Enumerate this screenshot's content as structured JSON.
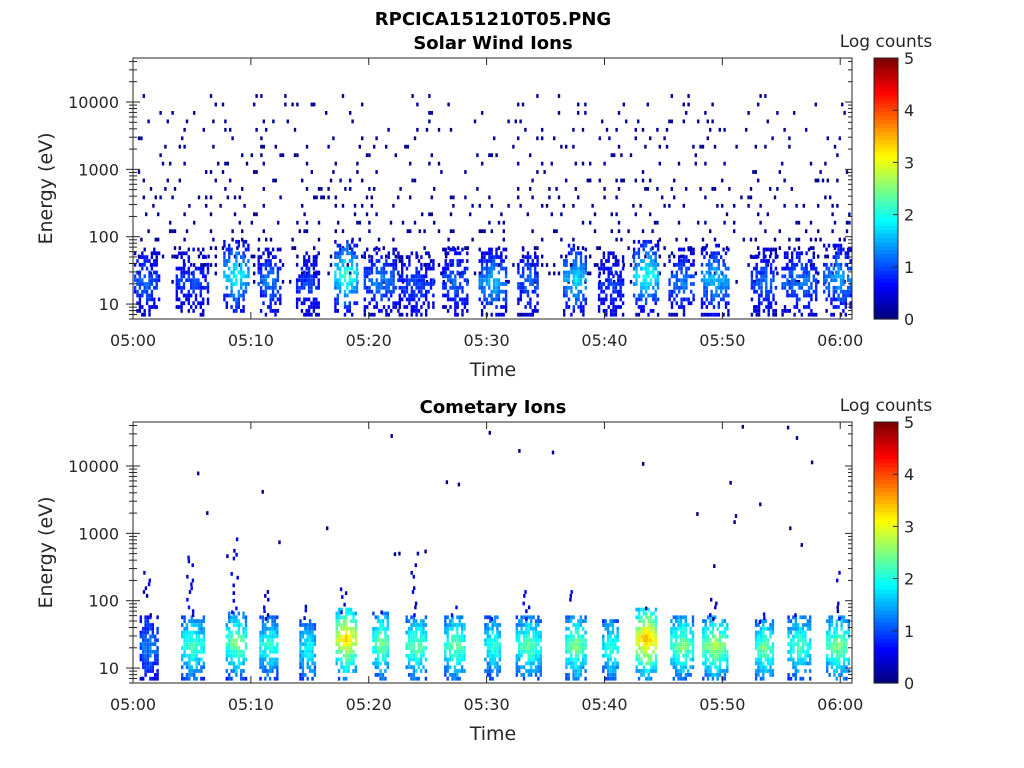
{
  "figure": {
    "file_title": "RPCICA151210T05.PNG"
  },
  "chart_data": [
    {
      "type": "heatmap",
      "title": "Solar Wind Ions",
      "xlabel": "Time",
      "ylabel": "Energy (eV)",
      "x_range_minutes": [
        0,
        61
      ],
      "x_ticks": [
        "05:00",
        "05:10",
        "05:20",
        "05:30",
        "05:40",
        "05:50",
        "06:00"
      ],
      "y_scale": "log",
      "y_range": [
        6,
        45000
      ],
      "y_ticks": [
        "10",
        "100",
        "1000",
        "10000"
      ],
      "colorbar": {
        "label": "Log counts",
        "min": 0,
        "max": 5,
        "ticks": [
          "0",
          "1",
          "2",
          "3",
          "4",
          "5"
        ],
        "colormap": "jet"
      },
      "bright_bursts": [
        {
          "t": 1,
          "peak_energy": 20,
          "level": 1.2
        },
        {
          "t": 5,
          "peak_energy": 20,
          "level": 1.0
        },
        {
          "t": 8.7,
          "peak_energy": 25,
          "level": 2.0
        },
        {
          "t": 11.5,
          "peak_energy": 20,
          "level": 1.3
        },
        {
          "t": 14.8,
          "peak_energy": 18,
          "level": 1.0
        },
        {
          "t": 18,
          "peak_energy": 25,
          "level": 2.3
        },
        {
          "t": 21,
          "peak_energy": 20,
          "level": 1.3
        },
        {
          "t": 24,
          "peak_energy": 18,
          "level": 1.0
        },
        {
          "t": 27.3,
          "peak_energy": 20,
          "level": 1.2
        },
        {
          "t": 30.5,
          "peak_energy": 20,
          "level": 1.6
        },
        {
          "t": 33.5,
          "peak_energy": 20,
          "level": 1.2
        },
        {
          "t": 37.5,
          "peak_energy": 22,
          "level": 1.8
        },
        {
          "t": 40.5,
          "peak_energy": 18,
          "level": 1.0
        },
        {
          "t": 43.5,
          "peak_energy": 25,
          "level": 2.1
        },
        {
          "t": 46.5,
          "peak_energy": 20,
          "level": 1.3
        },
        {
          "t": 49.3,
          "peak_energy": 22,
          "level": 1.7
        },
        {
          "t": 53.5,
          "peak_energy": 20,
          "level": 1.2
        },
        {
          "t": 56.5,
          "peak_energy": 20,
          "level": 1.3
        },
        {
          "t": 59.8,
          "peak_energy": 22,
          "level": 1.5
        }
      ],
      "background": {
        "min_energy": 20,
        "max_energy": 15000,
        "level": 0.1
      }
    },
    {
      "type": "heatmap",
      "title": "Cometary Ions",
      "xlabel": "Time",
      "ylabel": "Energy (eV)",
      "x_range_minutes": [
        0,
        61
      ],
      "x_ticks": [
        "05:00",
        "05:10",
        "05:20",
        "05:30",
        "05:40",
        "05:50",
        "06:00"
      ],
      "y_scale": "log",
      "y_range": [
        6,
        45000
      ],
      "y_ticks": [
        "10",
        "100",
        "1000",
        "10000"
      ],
      "colorbar": {
        "label": "Log counts",
        "min": 0,
        "max": 5,
        "ticks": [
          "0",
          "1",
          "2",
          "3",
          "4",
          "5"
        ],
        "colormap": "jet"
      },
      "bursts": [
        {
          "t": 1.3,
          "peak_energy": 20,
          "level": 1.3,
          "tail_top": 300
        },
        {
          "t": 5,
          "peak_energy": 20,
          "level": 2.3,
          "tail_top": 500
        },
        {
          "t": 8.7,
          "peak_energy": 22,
          "level": 2.6,
          "tail_top": 900
        },
        {
          "t": 11.5,
          "peak_energy": 20,
          "level": 2.2,
          "tail_top": 150
        },
        {
          "t": 14.8,
          "peak_energy": 18,
          "level": 2.0,
          "tail_top": 80
        },
        {
          "t": 18,
          "peak_energy": 25,
          "level": 3.4,
          "tail_top": 150
        },
        {
          "t": 21,
          "peak_energy": 22,
          "level": 2.6,
          "tail_top": 100
        },
        {
          "t": 24,
          "peak_energy": 20,
          "level": 2.5,
          "tail_top": 500
        },
        {
          "t": 27.3,
          "peak_energy": 20,
          "level": 2.5,
          "tail_top": 80
        },
        {
          "t": 30.5,
          "peak_energy": 20,
          "level": 2.2,
          "tail_top": 60
        },
        {
          "t": 33.5,
          "peak_energy": 20,
          "level": 2.4,
          "tail_top": 150
        },
        {
          "t": 37.5,
          "peak_energy": 20,
          "level": 2.6,
          "tail_top": 150
        },
        {
          "t": 40.5,
          "peak_energy": 18,
          "level": 2.2,
          "tail_top": 40
        },
        {
          "t": 43.5,
          "peak_energy": 25,
          "level": 3.6,
          "tail_top": 100
        },
        {
          "t": 46.5,
          "peak_energy": 20,
          "level": 2.6,
          "tail_top": 50
        },
        {
          "t": 49.3,
          "peak_energy": 20,
          "level": 2.8,
          "tail_top": 100
        },
        {
          "t": 53.5,
          "peak_energy": 18,
          "level": 2.5,
          "tail_top": 60
        },
        {
          "t": 56.5,
          "peak_energy": 20,
          "level": 2.3,
          "tail_top": 60
        },
        {
          "t": 59.8,
          "peak_energy": 20,
          "level": 2.6,
          "tail_top": 250
        }
      ]
    }
  ]
}
